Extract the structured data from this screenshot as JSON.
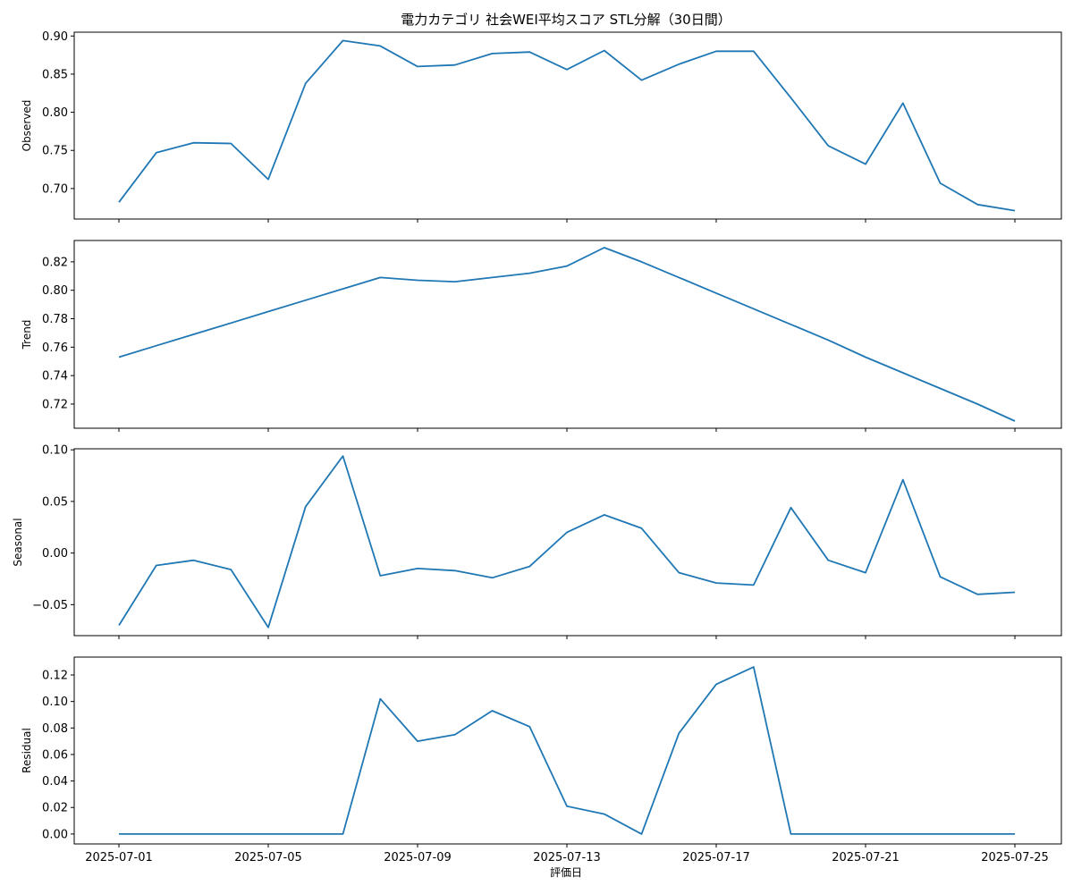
{
  "figure": {
    "title": "電力カテゴリ 社会WEI平均スコア STL分解（30日間）",
    "xlabel": "評価日",
    "line_color": "#1f77b4"
  },
  "chart_data": {
    "type": "line",
    "x": [
      "2025-07-01",
      "2025-07-02",
      "2025-07-03",
      "2025-07-04",
      "2025-07-05",
      "2025-07-06",
      "2025-07-07",
      "2025-07-08",
      "2025-07-09",
      "2025-07-10",
      "2025-07-11",
      "2025-07-12",
      "2025-07-13",
      "2025-07-14",
      "2025-07-15",
      "2025-07-16",
      "2025-07-17",
      "2025-07-18",
      "2025-07-19",
      "2025-07-20",
      "2025-07-21",
      "2025-07-22",
      "2025-07-23",
      "2025-07-24",
      "2025-07-25"
    ],
    "x_ticks": [
      "2025-07-01",
      "2025-07-05",
      "2025-07-09",
      "2025-07-13",
      "2025-07-17",
      "2025-07-21",
      "2025-07-25"
    ],
    "panels": [
      {
        "ylabel": "Observed",
        "ylim": [
          0.66,
          0.905
        ],
        "yticks": [
          0.7,
          0.75,
          0.8,
          0.85,
          0.9
        ],
        "ytick_labels": [
          "0.70",
          "0.75",
          "0.80",
          "0.85",
          "0.90"
        ],
        "values": [
          0.682,
          0.747,
          0.76,
          0.759,
          0.712,
          0.838,
          0.894,
          0.887,
          0.86,
          0.862,
          0.877,
          0.879,
          0.856,
          0.881,
          0.842,
          0.863,
          0.88,
          0.88,
          0.819,
          0.756,
          0.732,
          0.812,
          0.707,
          0.679,
          0.671
        ]
      },
      {
        "ylabel": "Trend",
        "ylim": [
          0.703,
          0.835
        ],
        "yticks": [
          0.72,
          0.74,
          0.76,
          0.78,
          0.8,
          0.82
        ],
        "ytick_labels": [
          "0.72",
          "0.74",
          "0.76",
          "0.78",
          "0.80",
          "0.82"
        ],
        "values": [
          0.753,
          0.761,
          0.769,
          0.777,
          0.785,
          0.793,
          0.801,
          0.809,
          0.807,
          0.806,
          0.809,
          0.812,
          0.817,
          0.83,
          0.82,
          0.809,
          0.798,
          0.787,
          0.776,
          0.765,
          0.753,
          0.742,
          0.731,
          0.72,
          0.708
        ]
      },
      {
        "ylabel": "Seasonal",
        "ylim": [
          -0.08,
          0.101
        ],
        "yticks": [
          -0.05,
          0.0,
          0.05,
          0.1
        ],
        "ytick_labels": [
          "−0.05",
          "0.00",
          "0.05",
          "0.10"
        ],
        "values": [
          -0.07,
          -0.012,
          -0.007,
          -0.016,
          -0.072,
          0.045,
          0.094,
          -0.022,
          -0.015,
          -0.017,
          -0.024,
          -0.013,
          0.02,
          0.037,
          0.024,
          -0.019,
          -0.029,
          -0.031,
          0.044,
          -0.007,
          -0.019,
          0.071,
          -0.023,
          -0.04,
          -0.038
        ]
      },
      {
        "ylabel": "Residual",
        "ylim": [
          -0.0075,
          0.1335
        ],
        "yticks": [
          0.0,
          0.02,
          0.04,
          0.06,
          0.08,
          0.1,
          0.12
        ],
        "ytick_labels": [
          "0.00",
          "0.02",
          "0.04",
          "0.06",
          "0.08",
          "0.10",
          "0.12"
        ],
        "values": [
          0,
          0,
          0,
          0,
          0,
          0,
          0,
          0.102,
          0.07,
          0.075,
          0.093,
          0.081,
          0.021,
          0.015,
          0.0,
          0.076,
          0.113,
          0.126,
          0,
          0,
          0,
          0,
          0,
          0,
          0
        ]
      }
    ]
  }
}
